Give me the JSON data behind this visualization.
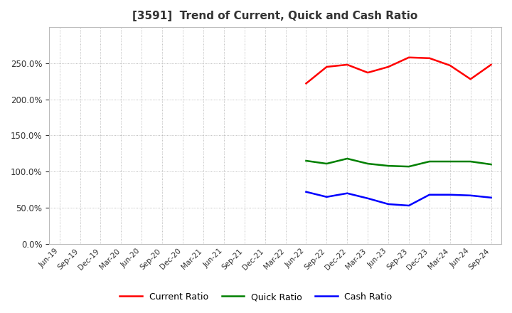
{
  "title": "[3591]  Trend of Current, Quick and Cash Ratio",
  "x_labels": [
    "Jun-19",
    "Sep-19",
    "Dec-19",
    "Mar-20",
    "Jun-20",
    "Sep-20",
    "Dec-20",
    "Mar-21",
    "Jun-21",
    "Sep-21",
    "Dec-21",
    "Mar-22",
    "Jun-22",
    "Sep-22",
    "Dec-22",
    "Mar-23",
    "Jun-23",
    "Sep-23",
    "Dec-23",
    "Mar-24",
    "Jun-24",
    "Sep-24"
  ],
  "current_ratio": [
    null,
    null,
    null,
    null,
    null,
    null,
    null,
    null,
    null,
    null,
    null,
    null,
    222.0,
    245.0,
    248.0,
    237.0,
    245.0,
    258.0,
    257.0,
    247.0,
    228.0,
    248.0
  ],
  "quick_ratio": [
    null,
    null,
    null,
    null,
    null,
    null,
    null,
    null,
    null,
    null,
    null,
    null,
    115.0,
    111.0,
    118.0,
    111.0,
    108.0,
    107.0,
    114.0,
    114.0,
    114.0,
    110.0
  ],
  "cash_ratio": [
    null,
    null,
    null,
    null,
    null,
    null,
    null,
    null,
    null,
    null,
    null,
    null,
    72.0,
    65.0,
    70.0,
    63.0,
    55.0,
    53.0,
    68.0,
    68.0,
    67.0,
    64.0
  ],
  "current_color": "#FF0000",
  "quick_color": "#008000",
  "cash_color": "#0000FF",
  "background_color": "#FFFFFF",
  "plot_bg_color": "#FFFFFF",
  "ylim": [
    0,
    300
  ],
  "yticks": [
    0,
    50,
    100,
    150,
    200,
    250
  ],
  "grid_color": "#AAAAAA",
  "line_width": 1.8,
  "title_color": "#333333",
  "legend_labels": [
    "Current Ratio",
    "Quick Ratio",
    "Cash Ratio"
  ]
}
